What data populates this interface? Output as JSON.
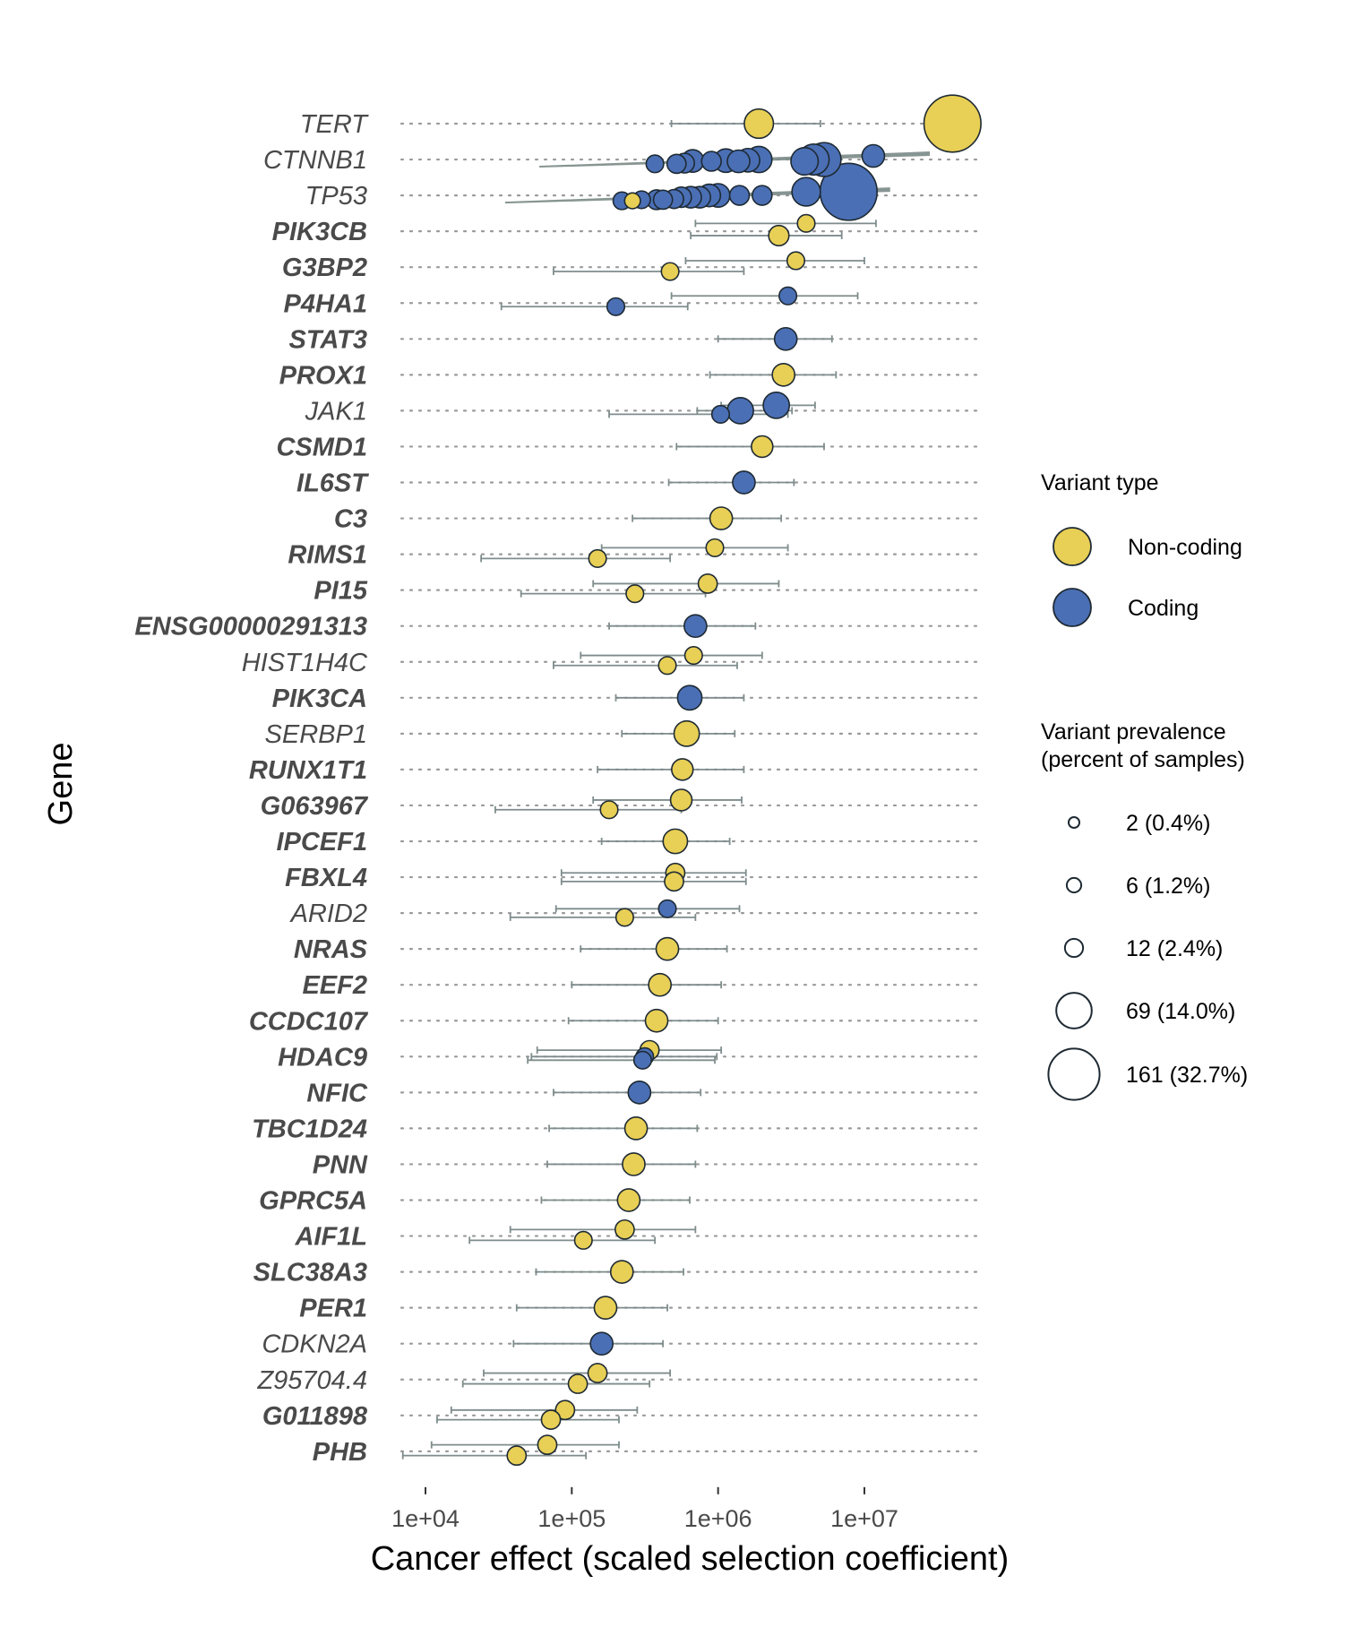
{
  "chart_data": {
    "type": "scatter",
    "xlabel": "Cancer effect (scaled selection coefficient)",
    "ylabel": "Gene",
    "x_scale": "log10",
    "xlim": [
      5000,
      60000000
    ],
    "x_ticks": [
      {
        "value": 10000,
        "label": "1e+04"
      },
      {
        "value": 100000,
        "label": "1e+05"
      },
      {
        "value": 1000000,
        "label": "1e+06"
      },
      {
        "value": 10000000,
        "label": "1e+07"
      }
    ],
    "grid": "dotted horizontal lines per gene",
    "colors": {
      "Non-coding": "#e8cf55",
      "Coding": "#4a6fb5",
      "errorbar": "#7f8c8c",
      "fan": "#7a8a86"
    },
    "genes": [
      {
        "name": "TERT",
        "bold": false
      },
      {
        "name": "CTNNB1",
        "bold": false
      },
      {
        "name": "TP53",
        "bold": false
      },
      {
        "name": "PIK3CB",
        "bold": true
      },
      {
        "name": "G3BP2",
        "bold": true
      },
      {
        "name": "P4HA1",
        "bold": true
      },
      {
        "name": "STAT3",
        "bold": true
      },
      {
        "name": "PROX1",
        "bold": true
      },
      {
        "name": "JAK1",
        "bold": false
      },
      {
        "name": "CSMD1",
        "bold": true
      },
      {
        "name": "IL6ST",
        "bold": true
      },
      {
        "name": "C3",
        "bold": true
      },
      {
        "name": "RIMS1",
        "bold": true
      },
      {
        "name": "PI15",
        "bold": true
      },
      {
        "name": "ENSG00000291313",
        "bold": true
      },
      {
        "name": "HIST1H4C",
        "bold": false
      },
      {
        "name": "PIK3CA",
        "bold": true
      },
      {
        "name": "SERBP1",
        "bold": false
      },
      {
        "name": "RUNX1T1",
        "bold": true
      },
      {
        "name": "G063967",
        "bold": true
      },
      {
        "name": "IPCEF1",
        "bold": true
      },
      {
        "name": "FBXL4",
        "bold": true
      },
      {
        "name": "ARID2",
        "bold": false
      },
      {
        "name": "NRAS",
        "bold": true
      },
      {
        "name": "EEF2",
        "bold": true
      },
      {
        "name": "CCDC107",
        "bold": true
      },
      {
        "name": "HDAC9",
        "bold": true
      },
      {
        "name": "NFIC",
        "bold": true
      },
      {
        "name": "TBC1D24",
        "bold": true
      },
      {
        "name": "PNN",
        "bold": true
      },
      {
        "name": "GPRC5A",
        "bold": true
      },
      {
        "name": "AIF1L",
        "bold": true
      },
      {
        "name": "SLC38A3",
        "bold": true
      },
      {
        "name": "PER1",
        "bold": true
      },
      {
        "name": "CDKN2A",
        "bold": false
      },
      {
        "name": "Z95704.4",
        "bold": false
      },
      {
        "name": "G011898",
        "bold": true
      },
      {
        "name": "PHB",
        "bold": true
      }
    ],
    "points": [
      {
        "gene": "TERT",
        "type": "Non-coding",
        "x": 40000000,
        "n": 161,
        "offset": 0
      },
      {
        "gene": "TERT",
        "type": "Non-coding",
        "x": 1900000,
        "n": 30,
        "lo": 480000,
        "hi": 5000000,
        "offset": 0
      },
      {
        "gene": "CTNNB1",
        "type": "Coding",
        "x": 11500000,
        "n": 14,
        "offset": -0.1
      },
      {
        "gene": "CTNNB1",
        "type": "Coding",
        "x": 5300000,
        "n": 45,
        "offset": 0
      },
      {
        "gene": "CTNNB1",
        "type": "Coding",
        "x": 4500000,
        "n": 35,
        "offset": 0
      },
      {
        "gene": "CTNNB1",
        "type": "Coding",
        "x": 3900000,
        "n": 25,
        "offset": 0.05
      },
      {
        "gene": "CTNNB1",
        "type": "Coding",
        "x": 1900000,
        "n": 22,
        "offset": 0
      },
      {
        "gene": "CTNNB1",
        "type": "Coding",
        "x": 1600000,
        "n": 16,
        "offset": 0.02
      },
      {
        "gene": "CTNNB1",
        "type": "Coding",
        "x": 1380000,
        "n": 14,
        "offset": 0.05
      },
      {
        "gene": "CTNNB1",
        "type": "Coding",
        "x": 1130000,
        "n": 16,
        "offset": 0.03
      },
      {
        "gene": "CTNNB1",
        "type": "Coding",
        "x": 900000,
        "n": 9,
        "offset": 0.05
      },
      {
        "gene": "CTNNB1",
        "type": "Coding",
        "x": 670000,
        "n": 14,
        "offset": 0.04
      },
      {
        "gene": "CTNNB1",
        "type": "Coding",
        "x": 590000,
        "n": 9,
        "offset": 0.1
      },
      {
        "gene": "CTNNB1",
        "type": "Coding",
        "x": 520000,
        "n": 8,
        "offset": 0.12
      },
      {
        "gene": "CTNNB1",
        "type": "Coding",
        "x": 370000,
        "n": 6,
        "offset": 0.12
      },
      {
        "gene": "TP53",
        "type": "Coding",
        "x": 7800000,
        "n": 161,
        "offset": -0.1
      },
      {
        "gene": "TP53",
        "type": "Coding",
        "x": 4000000,
        "n": 28,
        "offset": -0.1
      },
      {
        "gene": "TP53",
        "type": "Coding",
        "x": 2000000,
        "n": 9,
        "offset": 0
      },
      {
        "gene": "TP53",
        "type": "Coding",
        "x": 1400000,
        "n": 9,
        "offset": 0
      },
      {
        "gene": "TP53",
        "type": "Coding",
        "x": 1000000,
        "n": 16,
        "offset": 0
      },
      {
        "gene": "TP53",
        "type": "Coding",
        "x": 870000,
        "n": 14,
        "offset": 0
      },
      {
        "gene": "TP53",
        "type": "Coding",
        "x": 750000,
        "n": 12,
        "offset": 0.05
      },
      {
        "gene": "TP53",
        "type": "Coding",
        "x": 650000,
        "n": 12,
        "offset": 0.05
      },
      {
        "gene": "TP53",
        "type": "Coding",
        "x": 560000,
        "n": 10,
        "offset": 0.05
      },
      {
        "gene": "TP53",
        "type": "Coding",
        "x": 500000,
        "n": 8,
        "offset": 0.1
      },
      {
        "gene": "TP53",
        "type": "Coding",
        "x": 420000,
        "n": 8,
        "offset": 0.12
      },
      {
        "gene": "TP53",
        "type": "Coding",
        "x": 380000,
        "n": 9,
        "offset": 0.12
      },
      {
        "gene": "TP53",
        "type": "Coding",
        "x": 300000,
        "n": 6,
        "offset": 0.12
      },
      {
        "gene": "TP53",
        "type": "Non-coding",
        "x": 260000,
        "n": 4,
        "offset": 0.15
      },
      {
        "gene": "TP53",
        "type": "Coding",
        "x": 220000,
        "n": 6,
        "offset": 0.15
      },
      {
        "gene": "PIK3CB",
        "type": "Non-coding",
        "x": 4000000,
        "n": 6,
        "lo": 700000,
        "hi": 12000000,
        "offset": -0.22
      },
      {
        "gene": "PIK3CB",
        "type": "Non-coding",
        "x": 2600000,
        "n": 10,
        "lo": 650000,
        "hi": 7000000,
        "offset": 0.12
      },
      {
        "gene": "G3BP2",
        "type": "Non-coding",
        "x": 3400000,
        "n": 6,
        "lo": 600000,
        "hi": 10000000,
        "offset": -0.18
      },
      {
        "gene": "G3BP2",
        "type": "Non-coding",
        "x": 470000,
        "n": 6,
        "lo": 75000,
        "hi": 1500000,
        "offset": 0.12
      },
      {
        "gene": "P4HA1",
        "type": "Coding",
        "x": 3000000,
        "n": 6,
        "lo": 480000,
        "hi": 9000000,
        "offset": -0.2
      },
      {
        "gene": "P4HA1",
        "type": "Coding",
        "x": 200000,
        "n": 6,
        "lo": 33000,
        "hi": 620000,
        "offset": 0.1
      },
      {
        "gene": "STAT3",
        "type": "Coding",
        "x": 2900000,
        "n": 14,
        "lo": 1000000,
        "hi": 6000000,
        "offset": 0
      },
      {
        "gene": "PROX1",
        "type": "Non-coding",
        "x": 2800000,
        "n": 14,
        "lo": 880000,
        "hi": 6400000,
        "offset": 0
      },
      {
        "gene": "JAK1",
        "type": "Coding",
        "x": 2500000,
        "n": 22,
        "lo": 1050000,
        "hi": 4600000,
        "offset": -0.15
      },
      {
        "gene": "JAK1",
        "type": "Coding",
        "x": 1420000,
        "n": 22,
        "lo": 720000,
        "hi": 3200000,
        "offset": 0
      },
      {
        "gene": "JAK1",
        "type": "Coding",
        "x": 1040000,
        "n": 6,
        "lo": 180000,
        "hi": 3000000,
        "offset": 0.1
      },
      {
        "gene": "CSMD1",
        "type": "Non-coding",
        "x": 2000000,
        "n": 12,
        "lo": 520000,
        "hi": 5300000,
        "offset": 0
      },
      {
        "gene": "IL6ST",
        "type": "Coding",
        "x": 1500000,
        "n": 14,
        "lo": 460000,
        "hi": 3300000,
        "offset": 0
      },
      {
        "gene": "C3",
        "type": "Non-coding",
        "x": 1050000,
        "n": 14,
        "lo": 260000,
        "hi": 2700000,
        "offset": 0
      },
      {
        "gene": "RIMS1",
        "type": "Non-coding",
        "x": 950000,
        "n": 6,
        "lo": 160000,
        "hi": 3000000,
        "offset": -0.18
      },
      {
        "gene": "RIMS1",
        "type": "Non-coding",
        "x": 150000,
        "n": 6,
        "lo": 24000,
        "hi": 470000,
        "offset": 0.12
      },
      {
        "gene": "PI15",
        "type": "Non-coding",
        "x": 850000,
        "n": 8,
        "lo": 140000,
        "hi": 2600000,
        "offset": -0.18
      },
      {
        "gene": "PI15",
        "type": "Non-coding",
        "x": 270000,
        "n": 6,
        "lo": 45000,
        "hi": 820000,
        "offset": 0.1
      },
      {
        "gene": "ENSG00000291313",
        "type": "Coding",
        "x": 700000,
        "n": 14,
        "lo": 180000,
        "hi": 1800000,
        "offset": 0
      },
      {
        "gene": "HIST1H4C",
        "type": "Non-coding",
        "x": 680000,
        "n": 6,
        "lo": 115000,
        "hi": 2000000,
        "offset": -0.18
      },
      {
        "gene": "HIST1H4C",
        "type": "Non-coding",
        "x": 450000,
        "n": 6,
        "lo": 75000,
        "hi": 1350000,
        "offset": 0.1
      },
      {
        "gene": "PIK3CA",
        "type": "Coding",
        "x": 640000,
        "n": 18,
        "lo": 200000,
        "hi": 1500000,
        "offset": 0
      },
      {
        "gene": "SERBP1",
        "type": "Non-coding",
        "x": 610000,
        "n": 20,
        "lo": 220000,
        "hi": 1300000,
        "offset": 0
      },
      {
        "gene": "RUNX1T1",
        "type": "Non-coding",
        "x": 570000,
        "n": 12,
        "lo": 150000,
        "hi": 1500000,
        "offset": 0
      },
      {
        "gene": "G063967",
        "type": "Non-coding",
        "x": 560000,
        "n": 12,
        "lo": 140000,
        "hi": 1450000,
        "offset": -0.15
      },
      {
        "gene": "G063967",
        "type": "Non-coding",
        "x": 180000,
        "n": 6,
        "lo": 30000,
        "hi": 560000,
        "offset": 0.12
      },
      {
        "gene": "IPCEF1",
        "type": "Non-coding",
        "x": 510000,
        "n": 18,
        "lo": 160000,
        "hi": 1200000,
        "offset": 0
      },
      {
        "gene": "FBXL4",
        "type": "Non-coding",
        "x": 510000,
        "n": 8,
        "lo": 85000,
        "hi": 1550000,
        "offset": -0.12
      },
      {
        "gene": "FBXL4",
        "type": "Non-coding",
        "x": 500000,
        "n": 8,
        "lo": 85000,
        "hi": 1550000,
        "offset": 0.12
      },
      {
        "gene": "ARID2",
        "type": "Coding",
        "x": 450000,
        "n": 6,
        "lo": 78000,
        "hi": 1400000,
        "offset": -0.12
      },
      {
        "gene": "ARID2",
        "type": "Non-coding",
        "x": 230000,
        "n": 6,
        "lo": 38000,
        "hi": 700000,
        "offset": 0.12
      },
      {
        "gene": "NRAS",
        "type": "Non-coding",
        "x": 450000,
        "n": 14,
        "lo": 115000,
        "hi": 1150000,
        "offset": 0
      },
      {
        "gene": "EEF2",
        "type": "Non-coding",
        "x": 400000,
        "n": 14,
        "lo": 100000,
        "hi": 1050000,
        "offset": 0
      },
      {
        "gene": "CCDC107",
        "type": "Non-coding",
        "x": 380000,
        "n": 14,
        "lo": 95000,
        "hi": 1000000,
        "offset": 0
      },
      {
        "gene": "HDAC9",
        "type": "Non-coding",
        "x": 340000,
        "n": 8,
        "lo": 58000,
        "hi": 1050000,
        "offset": -0.18
      },
      {
        "gene": "HDAC9",
        "type": "Coding",
        "x": 315000,
        "n": 6,
        "lo": 53000,
        "hi": 980000,
        "offset": 0
      },
      {
        "gene": "HDAC9",
        "type": "Coding",
        "x": 305000,
        "n": 6,
        "lo": 50000,
        "hi": 950000,
        "offset": 0.1
      },
      {
        "gene": "NFIC",
        "type": "Coding",
        "x": 290000,
        "n": 14,
        "lo": 75000,
        "hi": 760000,
        "offset": 0
      },
      {
        "gene": "TBC1D24",
        "type": "Non-coding",
        "x": 275000,
        "n": 14,
        "lo": 70000,
        "hi": 720000,
        "offset": 0
      },
      {
        "gene": "PNN",
        "type": "Non-coding",
        "x": 265000,
        "n": 14,
        "lo": 68000,
        "hi": 700000,
        "offset": 0
      },
      {
        "gene": "GPRC5A",
        "type": "Non-coding",
        "x": 245000,
        "n": 14,
        "lo": 62000,
        "hi": 640000,
        "offset": 0
      },
      {
        "gene": "AIF1L",
        "type": "Non-coding",
        "x": 230000,
        "n": 8,
        "lo": 38000,
        "hi": 700000,
        "offset": -0.18
      },
      {
        "gene": "AIF1L",
        "type": "Non-coding",
        "x": 120000,
        "n": 6,
        "lo": 20000,
        "hi": 370000,
        "offset": 0.12
      },
      {
        "gene": "SLC38A3",
        "type": "Non-coding",
        "x": 220000,
        "n": 14,
        "lo": 57000,
        "hi": 580000,
        "offset": 0
      },
      {
        "gene": "PER1",
        "type": "Non-coding",
        "x": 170000,
        "n": 14,
        "lo": 42000,
        "hi": 450000,
        "offset": 0
      },
      {
        "gene": "CDKN2A",
        "type": "Coding",
        "x": 160000,
        "n": 14,
        "lo": 40000,
        "hi": 420000,
        "offset": 0
      },
      {
        "gene": "Z95704.4",
        "type": "Non-coding",
        "x": 150000,
        "n": 8,
        "lo": 25000,
        "hi": 470000,
        "offset": -0.18
      },
      {
        "gene": "Z95704.4",
        "type": "Non-coding",
        "x": 110000,
        "n": 8,
        "lo": 18000,
        "hi": 340000,
        "offset": 0.12
      },
      {
        "gene": "G011898",
        "type": "Non-coding",
        "x": 90000,
        "n": 8,
        "lo": 15000,
        "hi": 280000,
        "offset": -0.15
      },
      {
        "gene": "G011898",
        "type": "Non-coding",
        "x": 72000,
        "n": 8,
        "lo": 12000,
        "hi": 210000,
        "offset": 0.12
      },
      {
        "gene": "PHB",
        "type": "Non-coding",
        "x": 68000,
        "n": 8,
        "lo": 11000,
        "hi": 210000,
        "offset": -0.18
      },
      {
        "gene": "PHB",
        "type": "Non-coding",
        "x": 42000,
        "n": 8,
        "lo": 7000,
        "hi": 125000,
        "offset": 0.12
      }
    ],
    "fans": [
      {
        "gene": "CTNNB1",
        "from": 60000,
        "to": 28000000
      },
      {
        "gene": "TP53",
        "from": 35000,
        "to": 15000000
      }
    ],
    "legend": {
      "placement": "right",
      "type_title": "Variant type",
      "type_items": [
        {
          "label": "Non-coding",
          "color": "#e8cf55"
        },
        {
          "label": "Coding",
          "color": "#4a6fb5"
        }
      ],
      "size_title_line1": "Variant prevalence",
      "size_title_line2": "(percent of samples)",
      "size_items": [
        {
          "label": "2 (0.4%)",
          "n": 2
        },
        {
          "label": "6 (1.2%)",
          "n": 6
        },
        {
          "label": "12 (2.4%)",
          "n": 12
        },
        {
          "label": "69 (14.0%)",
          "n": 69
        },
        {
          "label": "161 (32.7%)",
          "n": 161
        }
      ]
    }
  }
}
